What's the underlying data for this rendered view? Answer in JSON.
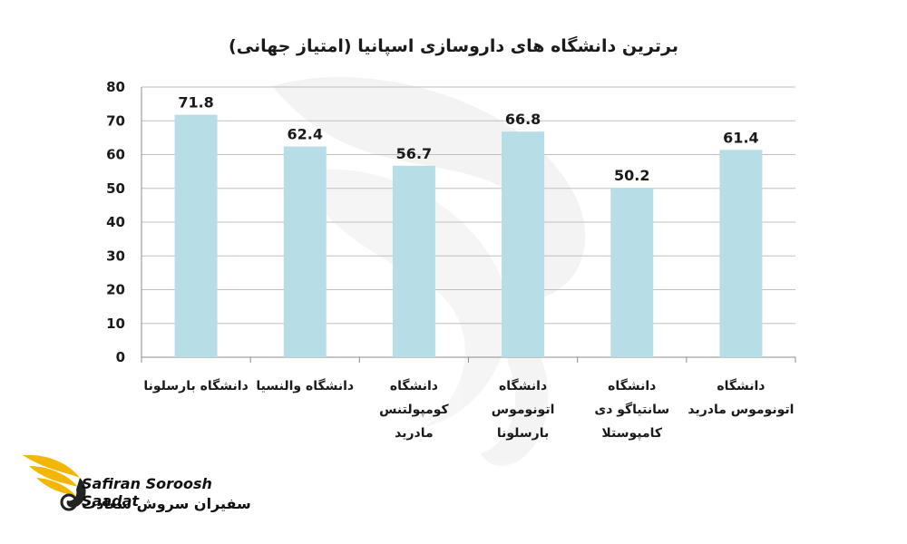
{
  "chart_data": {
    "type": "bar",
    "title": "برترین دانشگاه های داروسازی اسپانیا (امتیاز جهانی)",
    "categories": [
      [
        "دانشگاه بارسلونا"
      ],
      [
        "دانشگاه والنسیا"
      ],
      [
        "دانشگاه",
        "کومپولتنس",
        "مادرید"
      ],
      [
        "دانشگاه",
        "اتونوموس",
        "بارسلونا"
      ],
      [
        "دانشگاه",
        "سانتیاگو دی",
        "کامپوستلا"
      ],
      [
        "دانشگاه",
        "اتونوموس مادرید"
      ]
    ],
    "values": [
      71.8,
      62.4,
      56.7,
      66.8,
      50.2,
      61.4
    ],
    "value_labels": [
      "71.8",
      "62.4",
      "56.7",
      "66.8",
      "50.2",
      "61.4"
    ],
    "yticks": [
      "0",
      "10",
      "20",
      "30",
      "40",
      "50",
      "60",
      "70",
      "80"
    ],
    "ylim": [
      0,
      80
    ],
    "grid": true,
    "legend": "none",
    "bar_color": "#b7dde6"
  },
  "brand": {
    "name_en": "Safiran Soroosh Saadat",
    "name_fa": "سفیران سروش سعادت"
  }
}
